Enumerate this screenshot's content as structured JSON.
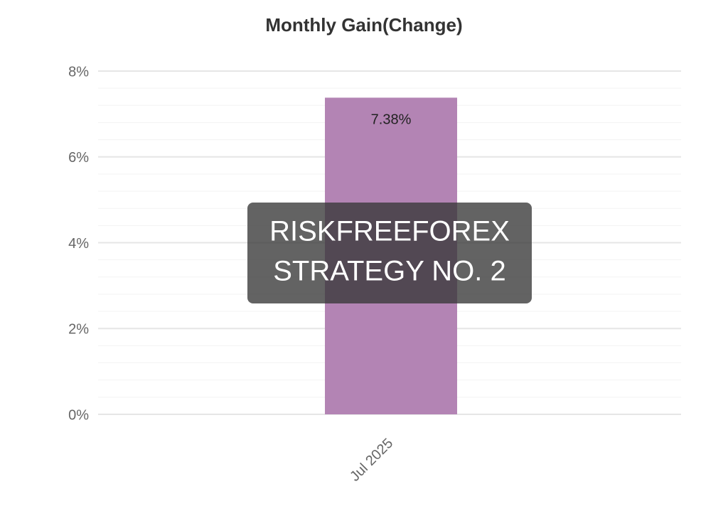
{
  "chart_data": {
    "type": "bar",
    "title": "Monthly Gain(Change)",
    "categories": [
      "Jul 2025"
    ],
    "values": [
      7.38
    ],
    "value_labels": [
      "7.38%"
    ],
    "color": "#b384b4",
    "ylim": [
      0,
      8
    ],
    "yticks": [
      {
        "value": 0,
        "label": "0%"
      },
      {
        "value": 2,
        "label": "2%"
      },
      {
        "value": 4,
        "label": "4%"
      },
      {
        "value": 6,
        "label": "6%"
      },
      {
        "value": 8,
        "label": "8%"
      }
    ],
    "minor_yticks": [
      0.4,
      0.8,
      1.2,
      1.6,
      2.4,
      2.8,
      3.2,
      3.6,
      4.4,
      4.8,
      5.2,
      5.6,
      6.4,
      6.8,
      7.2,
      7.6
    ],
    "grid": true,
    "watermark": [
      "RISKFREEFOREX",
      "STRATEGY NO. 2"
    ]
  }
}
